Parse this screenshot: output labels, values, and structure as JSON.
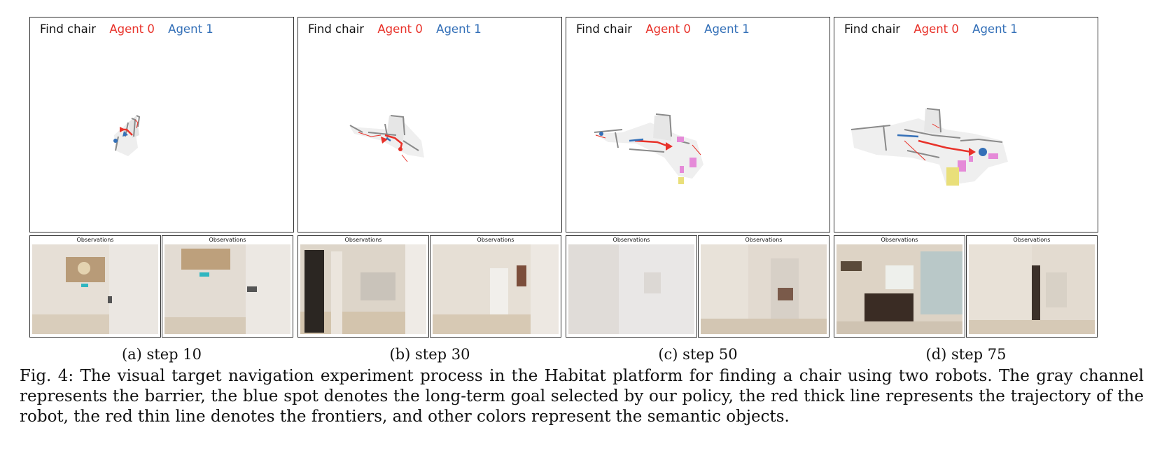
{
  "legend": {
    "goal": "Find chair",
    "agent0": "Agent 0",
    "agent1": "Agent 1"
  },
  "colors": {
    "agent0": "#e8322a",
    "agent1": "#3470b8",
    "barrier": "#8a8a8a",
    "explored": "#eeeeee",
    "semantic_pink": "#e58ad8",
    "semantic_yellow": "#e9df7a"
  },
  "observations_label": "Observations",
  "panels": [
    {
      "caption": "(a) step 10"
    },
    {
      "caption": "(b) step 30"
    },
    {
      "caption": "(c) step 50"
    },
    {
      "caption": "(d) step 75"
    }
  ],
  "figure_caption": "Fig. 4: The visual target navigation experiment process in the Habitat platform for finding a chair using two robots. The gray channel represents the barrier, the blue spot denotes the long-term goal selected by our policy, the red thick line represents the trajectory of the robot, the red thin line denotes the frontiers, and other colors represent the semantic objects."
}
